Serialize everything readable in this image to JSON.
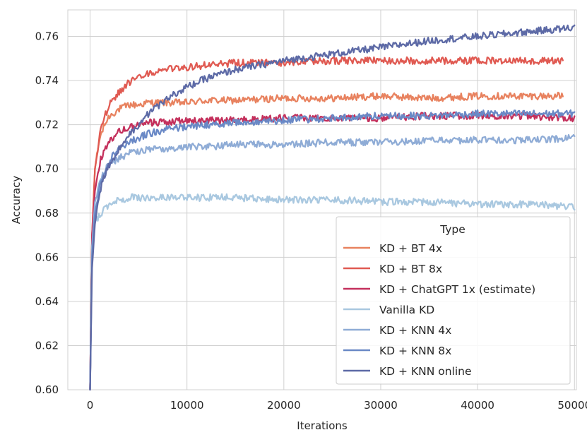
{
  "chart_data": {
    "type": "line",
    "xlabel": "Iterations",
    "ylabel": "Accuracy",
    "xlim": [
      -2300,
      50200
    ],
    "ylim": [
      0.6,
      0.772
    ],
    "xticks": [
      0,
      10000,
      20000,
      30000,
      40000,
      50000
    ],
    "xtick_labels": [
      "0",
      "10000",
      "20000",
      "30000",
      "40000",
      "50000"
    ],
    "yticks": [
      0.6,
      0.62,
      0.64,
      0.66,
      0.68,
      0.7,
      0.72,
      0.74,
      0.76
    ],
    "ytick_labels": [
      "0.60",
      "0.62",
      "0.64",
      "0.66",
      "0.68",
      "0.70",
      "0.72",
      "0.74",
      "0.76"
    ],
    "grid": true,
    "legend": {
      "title": "Type",
      "position": "lower-right"
    },
    "series": [
      {
        "name": "KD + BT 4x",
        "color": "#e8825f",
        "x": [
          0,
          200,
          500,
          1000,
          1500,
          2000,
          3000,
          4000,
          5000,
          6000,
          8000,
          10000,
          12000,
          15000,
          20000,
          25000,
          30000,
          35000,
          40000,
          45000,
          48800
        ],
        "y": [
          0.6,
          0.67,
          0.7,
          0.714,
          0.72,
          0.724,
          0.727,
          0.729,
          0.729,
          0.73,
          0.73,
          0.73,
          0.731,
          0.731,
          0.732,
          0.732,
          0.733,
          0.732,
          0.733,
          0.733,
          0.733
        ]
      },
      {
        "name": "KD + BT 8x",
        "color": "#e05a52",
        "x": [
          0,
          200,
          500,
          1000,
          1500,
          2000,
          3000,
          4000,
          5000,
          6000,
          8000,
          10000,
          12000,
          15000,
          20000,
          25000,
          30000,
          35000,
          40000,
          45000,
          48800
        ],
        "y": [
          0.6,
          0.67,
          0.7,
          0.716,
          0.724,
          0.729,
          0.735,
          0.739,
          0.741,
          0.743,
          0.745,
          0.746,
          0.747,
          0.748,
          0.748,
          0.749,
          0.749,
          0.749,
          0.749,
          0.749,
          0.749
        ]
      },
      {
        "name": "KD + ChatGPT 1x (estimate)",
        "color": "#c4305c",
        "x": [
          0,
          200,
          500,
          1000,
          1500,
          2000,
          3000,
          4000,
          5000,
          6000,
          8000,
          10000,
          12000,
          15000,
          20000,
          25000,
          30000,
          35000,
          40000,
          45000,
          50000
        ],
        "y": [
          0.6,
          0.67,
          0.69,
          0.703,
          0.709,
          0.713,
          0.717,
          0.719,
          0.72,
          0.721,
          0.721,
          0.722,
          0.722,
          0.722,
          0.723,
          0.723,
          0.723,
          0.724,
          0.724,
          0.724,
          0.723
        ]
      },
      {
        "name": "Vanilla KD",
        "color": "#a9c8e0",
        "x": [
          0,
          200,
          500,
          1000,
          1500,
          2000,
          3000,
          4000,
          5000,
          6000,
          8000,
          10000,
          12000,
          15000,
          20000,
          25000,
          30000,
          35000,
          40000,
          45000,
          50000
        ],
        "y": [
          0.6,
          0.665,
          0.676,
          0.679,
          0.682,
          0.684,
          0.686,
          0.687,
          0.687,
          0.687,
          0.687,
          0.687,
          0.687,
          0.687,
          0.686,
          0.686,
          0.685,
          0.685,
          0.684,
          0.684,
          0.683
        ]
      },
      {
        "name": "KD + KNN 4x",
        "color": "#8facd6",
        "x": [
          0,
          200,
          500,
          1000,
          1500,
          2000,
          3000,
          4000,
          5000,
          6000,
          8000,
          10000,
          12000,
          15000,
          20000,
          25000,
          30000,
          35000,
          40000,
          45000,
          50000
        ],
        "y": [
          0.6,
          0.665,
          0.685,
          0.694,
          0.699,
          0.702,
          0.705,
          0.707,
          0.708,
          0.709,
          0.709,
          0.71,
          0.71,
          0.711,
          0.711,
          0.712,
          0.712,
          0.713,
          0.713,
          0.713,
          0.714
        ]
      },
      {
        "name": "KD + KNN 8x",
        "color": "#6a89c6",
        "x": [
          0,
          200,
          500,
          1000,
          1500,
          2000,
          3000,
          4000,
          5000,
          6000,
          8000,
          10000,
          12000,
          15000,
          20000,
          25000,
          30000,
          35000,
          40000,
          45000,
          50000
        ],
        "y": [
          0.6,
          0.66,
          0.68,
          0.692,
          0.699,
          0.704,
          0.709,
          0.712,
          0.714,
          0.716,
          0.718,
          0.719,
          0.72,
          0.721,
          0.722,
          0.723,
          0.724,
          0.724,
          0.725,
          0.725,
          0.725
        ]
      },
      {
        "name": " KD + KNN online",
        "color": "#5d6aa6",
        "x": [
          0,
          200,
          500,
          1000,
          1500,
          2000,
          3000,
          4000,
          5000,
          6000,
          8000,
          10000,
          12000,
          15000,
          20000,
          25000,
          30000,
          35000,
          40000,
          45000,
          50000
        ],
        "y": [
          0.6,
          0.655,
          0.675,
          0.69,
          0.697,
          0.702,
          0.709,
          0.715,
          0.72,
          0.725,
          0.732,
          0.737,
          0.741,
          0.745,
          0.749,
          0.752,
          0.755,
          0.758,
          0.76,
          0.762,
          0.764
        ]
      }
    ]
  }
}
